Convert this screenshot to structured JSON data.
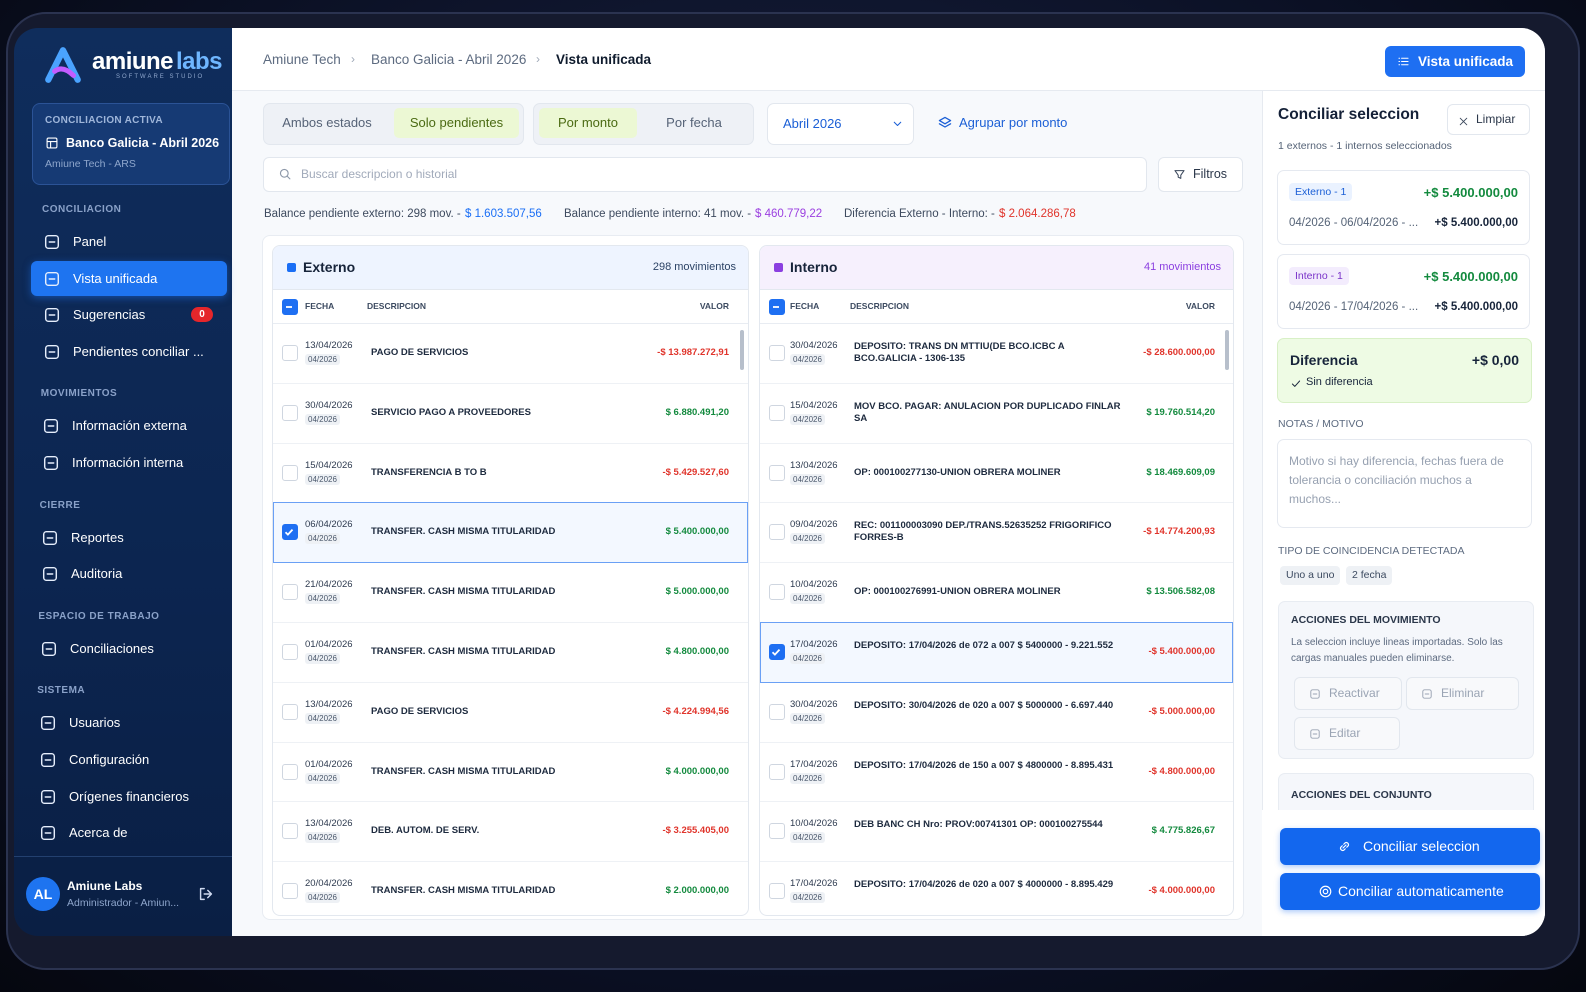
{
  "sidebar": {
    "brand": "amiune",
    "brand_accent": "labs",
    "brand_sub": "SOFTWARE STUDIO",
    "active_card": {
      "label": "CONCILIACION ACTIVA",
      "name": "Banco Galicia - Abril 2026",
      "sub": "Amiune Tech - ARS"
    },
    "sections": [
      {
        "title": "CONCILIACION",
        "items": [
          {
            "label": "Panel"
          },
          {
            "label": "Vista unificada",
            "active": true
          },
          {
            "label": "Sugerencias",
            "badge": "0"
          },
          {
            "label": "Pendientes conciliar ..."
          }
        ]
      },
      {
        "title": "MOVIMIENTOS",
        "items": [
          {
            "label": "Información externa"
          },
          {
            "label": "Información interna"
          }
        ]
      },
      {
        "title": "CIERRE",
        "items": [
          {
            "label": "Reportes"
          },
          {
            "label": "Auditoria"
          }
        ]
      },
      {
        "title": "ESPACIO DE TRABAJO",
        "items": [
          {
            "label": "Conciliaciones"
          }
        ]
      },
      {
        "title": "SISTEMA",
        "items": [
          {
            "label": "Usuarios"
          },
          {
            "label": "Configuración"
          },
          {
            "label": "Orígenes financieros"
          },
          {
            "label": "Acerca de"
          }
        ]
      }
    ],
    "user": {
      "initials": "AL",
      "name": "Amiune Labs",
      "role": "Administrador - Amiun..."
    }
  },
  "header": {
    "breadcrumb": [
      "Amiune Tech",
      "Banco Galicia - Abril 2026",
      "Vista unificada"
    ],
    "button": "Vista unificada"
  },
  "toolbar": {
    "state_options": [
      {
        "label": "Ambos estados"
      },
      {
        "label": "Solo pendientes",
        "active": true
      }
    ],
    "sort_options": [
      {
        "label": "Por monto",
        "active": true
      },
      {
        "label": "Por fecha"
      }
    ],
    "month": "Abril 2026",
    "group": "Agrupar por monto",
    "search_placeholder": "Buscar descripcion o historial",
    "filters": "Filtros"
  },
  "balances": [
    {
      "label": "Balance pendiente externo: 298 mov. -",
      "value": "$ 1.603.507,56",
      "color": "#1a6ef5"
    },
    {
      "label": "Balance pendiente interno: 41 mov. -",
      "value": "$ 460.779,22",
      "color": "#9b3fe0"
    },
    {
      "label": "Diferencia Externo - Interno: -",
      "value": "$ 2.064.286,78",
      "color": "#e0342b"
    }
  ],
  "tables": [
    {
      "title": "Externo",
      "count": "298 movimientos",
      "color": "#1a6ef5",
      "columns": [
        "FECHA",
        "DESCRIPCION",
        "VALOR"
      ],
      "rows": [
        {
          "date": "13/04/2026",
          "period": "04/2026",
          "description": "PAGO DE SERVICIOS",
          "value": "-$ 13.987.272,91"
        },
        {
          "date": "30/04/2026",
          "period": "04/2026",
          "description": "SERVICIO PAGO A PROVEEDORES",
          "value": "$ 6.880.491,20"
        },
        {
          "date": "15/04/2026",
          "period": "04/2026",
          "description": "TRANSFERENCIA B TO B",
          "value": "-$ 5.429.527,60"
        },
        {
          "date": "06/04/2026",
          "period": "04/2026",
          "description": "TRANSFER. CASH MISMA TITULARIDAD",
          "value": "$ 5.400.000,00",
          "selected": true
        },
        {
          "date": "21/04/2026",
          "period": "04/2026",
          "description": "TRANSFER. CASH MISMA TITULARIDAD",
          "value": "$ 5.000.000,00"
        },
        {
          "date": "01/04/2026",
          "period": "04/2026",
          "description": "TRANSFER. CASH MISMA TITULARIDAD",
          "value": "$ 4.800.000,00"
        },
        {
          "date": "13/04/2026",
          "period": "04/2026",
          "description": "PAGO DE SERVICIOS",
          "value": "-$ 4.224.994,56"
        },
        {
          "date": "01/04/2026",
          "period": "04/2026",
          "description": "TRANSFER. CASH MISMA TITULARIDAD",
          "value": "$ 4.000.000,00"
        },
        {
          "date": "13/04/2026",
          "period": "04/2026",
          "description": "DEB. AUTOM. DE SERV.",
          "value": "-$ 3.255.405,00"
        },
        {
          "date": "20/04/2026",
          "period": "04/2026",
          "description": "TRANSFER. CASH MISMA TITULARIDAD",
          "value": "$ 2.000.000,00"
        }
      ]
    },
    {
      "title": "Interno",
      "count": "41 movimientos",
      "color": "#8b3fe0",
      "columns": [
        "FECHA",
        "DESCRIPCION",
        "VALOR"
      ],
      "rows": [
        {
          "date": "30/04/2026",
          "period": "04/2026",
          "description": "DEPOSITO: TRANS DN MTTIU(DE BCO.ICBC A BCO.GALICIA - 1306-135",
          "value": "-$ 28.600.000,00"
        },
        {
          "date": "15/04/2026",
          "period": "04/2026",
          "description": "MOV BCO. PAGAR: ANULACION POR DUPLICADO FINLAR SA",
          "value": "$ 19.760.514,20"
        },
        {
          "date": "13/04/2026",
          "period": "04/2026",
          "description": "OP: 000100277130-UNION OBRERA MOLINER",
          "value": "$ 18.469.609,09"
        },
        {
          "date": "09/04/2026",
          "period": "04/2026",
          "description": "REC: 001100003090 DEP./TRANS.52635252 FRIGORIFICO FORRES-B",
          "value": "-$ 14.774.200,93"
        },
        {
          "date": "10/04/2026",
          "period": "04/2026",
          "description": "OP: 000100276991-UNION OBRERA MOLINER",
          "value": "$ 13.506.582,08"
        },
        {
          "date": "17/04/2026",
          "period": "04/2026",
          "description": "DEPOSITO: 17/04/2026 de 072 a 007 $ 5400000 - 9.221.552",
          "value": "-$ 5.400.000,00",
          "selected": true
        },
        {
          "date": "30/04/2026",
          "period": "04/2026",
          "description": "DEPOSITO: 30/04/2026 de 020 a 007 $ 5000000 - 6.697.440",
          "value": "-$ 5.000.000,00"
        },
        {
          "date": "17/04/2026",
          "period": "04/2026",
          "description": "DEPOSITO: 17/04/2026 de 150 a 007 $ 4800000 - 8.895.431",
          "value": "-$ 4.800.000,00"
        },
        {
          "date": "10/04/2026",
          "period": "04/2026",
          "description": "DEB BANC CH Nro: PROV:00741301 OP: 000100275544",
          "value": "$ 4.775.826,67"
        },
        {
          "date": "17/04/2026",
          "period": "04/2026",
          "description": "DEPOSITO: 17/04/2026 de 020 a 007 $ 4000000 - 8.895.429",
          "value": "-$ 4.000.000,00"
        }
      ]
    }
  ],
  "panel": {
    "title": "Conciliar seleccion",
    "clear": "Limpiar",
    "summary": "1 externos - 1 internos seleccionados",
    "picks": [
      {
        "tag": "Externo - 1",
        "amount": "+$ 5.400.000,00",
        "range": "04/2026 - 06/04/2026 - ...",
        "amount_detail": "+$ 5.400.000,00"
      },
      {
        "tag": "Interno - 1",
        "amount": "+$ 5.400.000,00",
        "range": "04/2026 - 17/04/2026 - ...",
        "amount_detail": "+$ 5.400.000,00"
      }
    ],
    "difference": {
      "label": "Diferencia",
      "value": "+$ 0,00",
      "note": "Sin diferencia"
    },
    "notes": {
      "label": "NOTAS / MOTIVO",
      "placeholder": "Motivo si hay diferencia, fechas fuera de tolerancia o conciliación muchos a muchos..."
    },
    "match": {
      "label": "TIPO DE COINCIDENCIA DETECTADA",
      "tags": [
        "Uno a uno",
        "2 fecha"
      ]
    },
    "movement_actions": {
      "title": "ACCIONES DEL MOVIMIENTO",
      "text": "La seleccion incluye lineas importadas. Solo las cargas manuales pueden eliminarse.",
      "buttons": [
        "Reactivar",
        "Eliminar",
        "Editar"
      ]
    },
    "set_actions": {
      "title": "ACCIONES DEL CONJUNTO"
    },
    "primary": [
      "Conciliar seleccion",
      "Conciliar automaticamente"
    ]
  }
}
